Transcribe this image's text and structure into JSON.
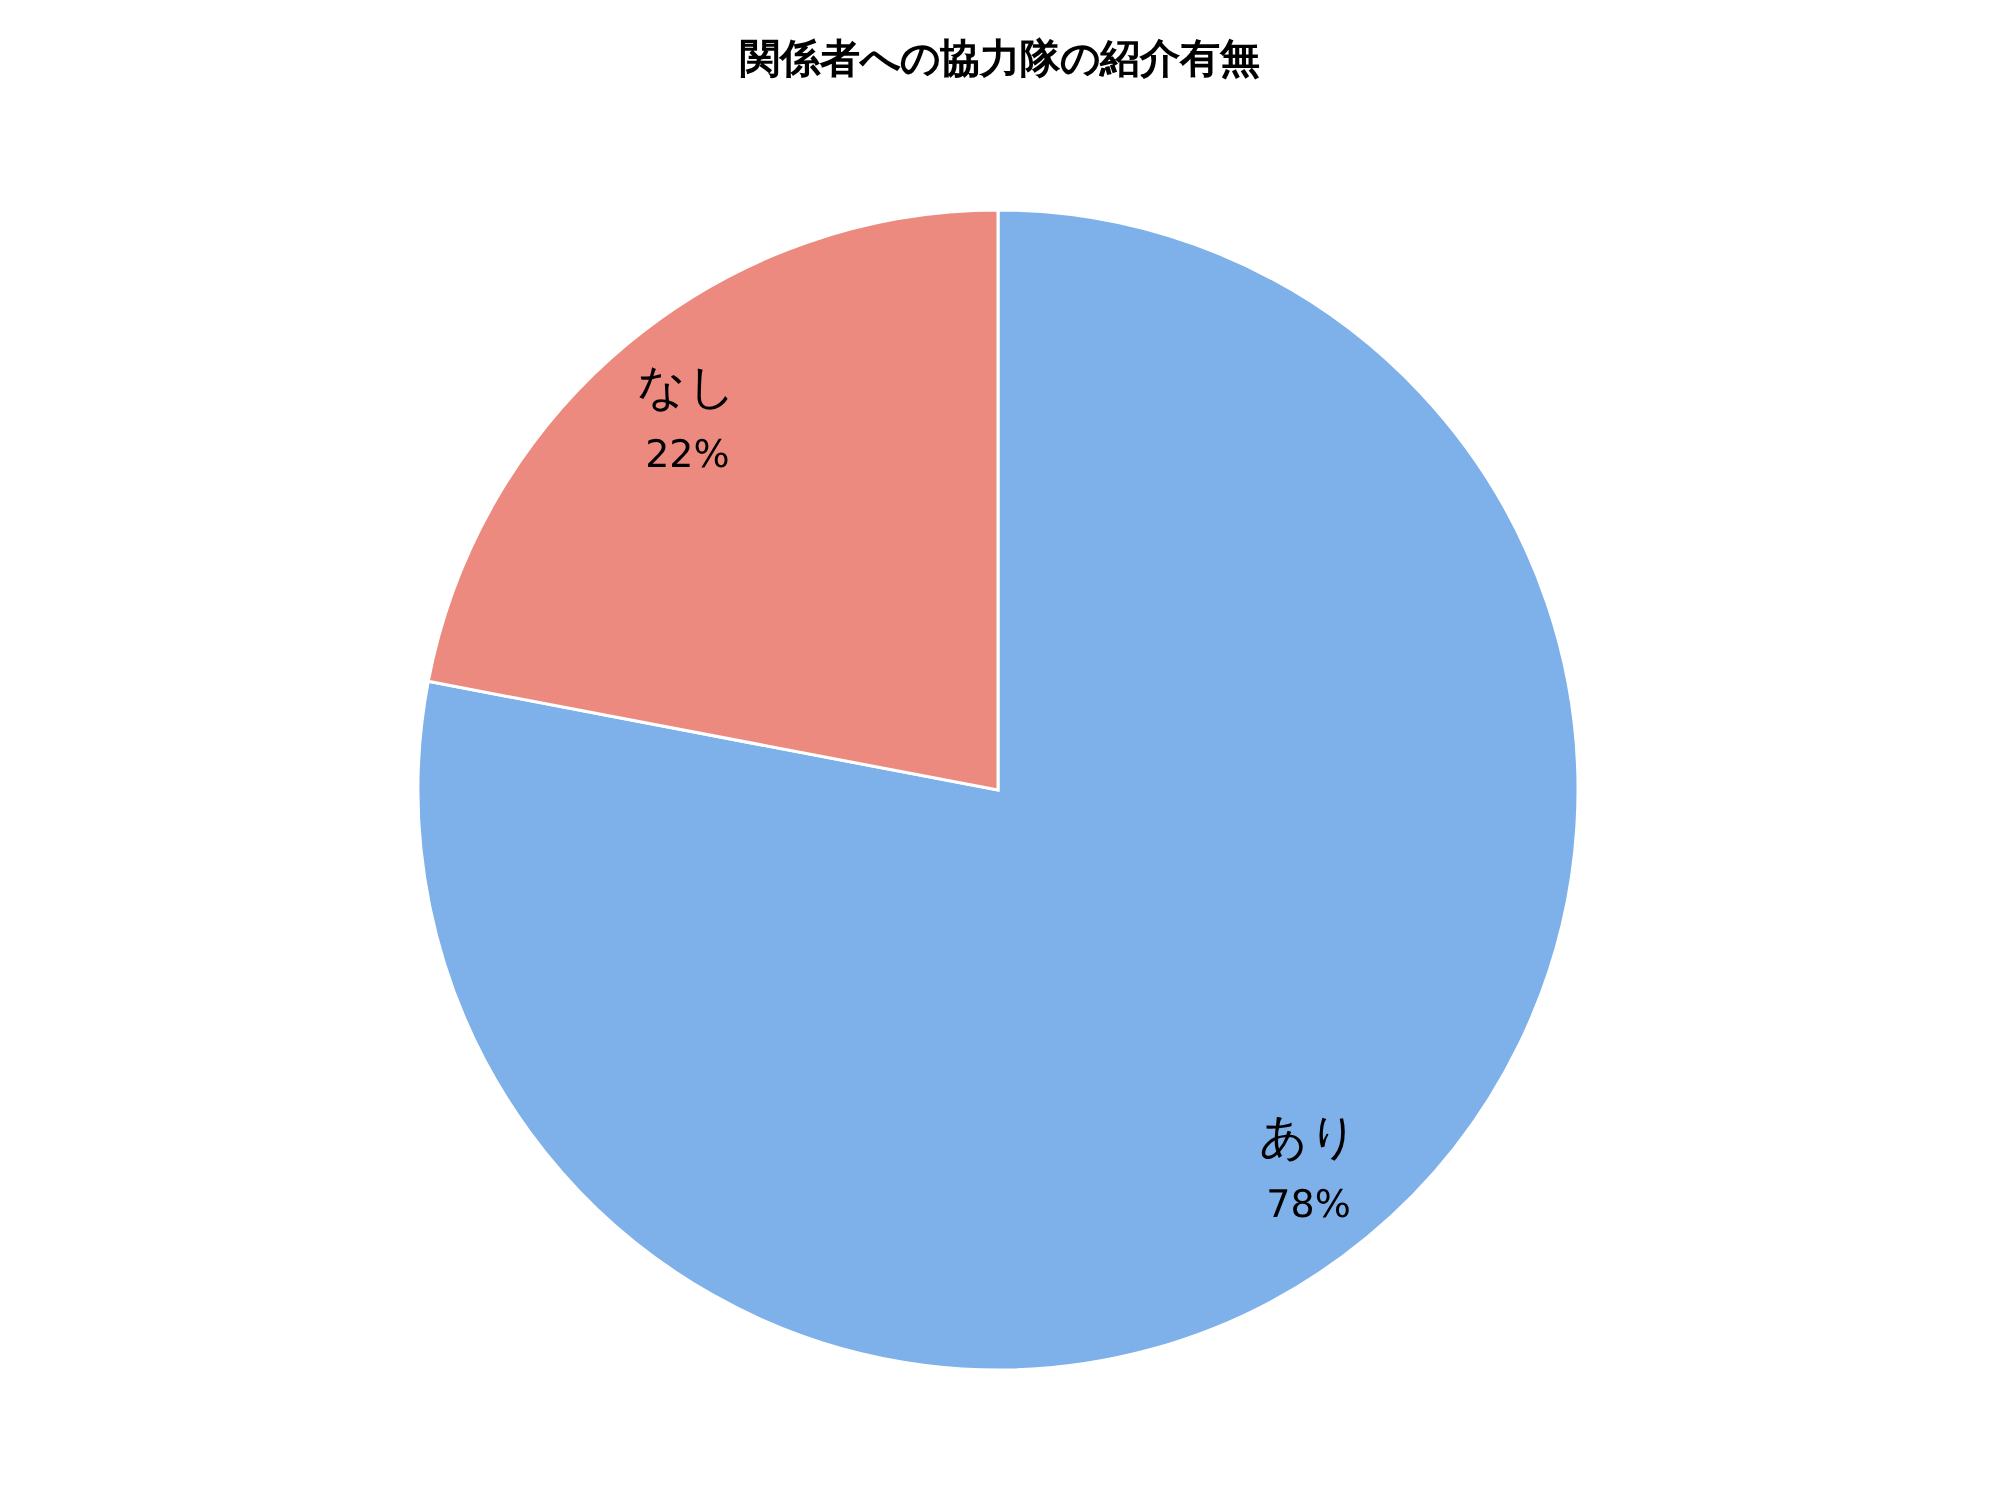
{
  "chart_data": {
    "type": "pie",
    "title": "関係者への協力隊の紹介有無",
    "categories": [
      "あり",
      "なし"
    ],
    "values": [
      78,
      22
    ],
    "value_labels": [
      "78%",
      "22%"
    ],
    "colors": [
      "#7eb0ea",
      "#ec8a80"
    ],
    "legend": false
  }
}
